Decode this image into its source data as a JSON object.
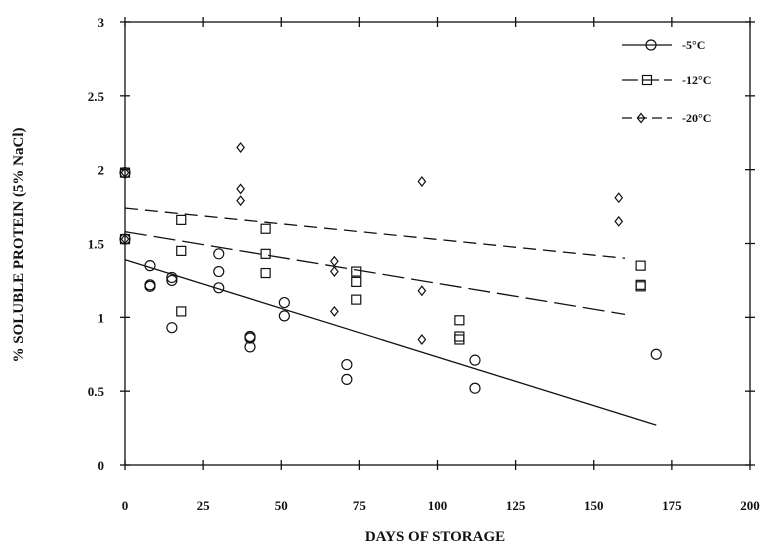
{
  "chart_data": {
    "type": "scatter",
    "xlabel": "DAYS OF STORAGE",
    "ylabel": "% SOLUBLE PROTEIN (5% NaCl)",
    "xlim": [
      0,
      200
    ],
    "ylim": [
      0,
      3
    ],
    "x_ticks": [
      0,
      25,
      50,
      75,
      100,
      125,
      150,
      175,
      200
    ],
    "y_ticks": [
      0,
      0.5,
      1,
      1.5,
      2,
      2.5,
      3
    ],
    "grid": false,
    "legend_position": "top-right",
    "series": [
      {
        "name": "-5°C",
        "marker": "circle",
        "line_style": "solid",
        "points": [
          [
            0,
            1.98
          ],
          [
            0,
            1.53
          ],
          [
            8,
            1.35
          ],
          [
            8,
            1.22
          ],
          [
            8,
            1.21
          ],
          [
            15,
            1.27
          ],
          [
            15,
            1.25
          ],
          [
            15,
            0.93
          ],
          [
            30,
            1.43
          ],
          [
            30,
            1.31
          ],
          [
            30,
            1.2
          ],
          [
            40,
            0.87
          ],
          [
            40,
            0.86
          ],
          [
            40,
            0.8
          ],
          [
            51,
            1.1
          ],
          [
            51,
            1.01
          ],
          [
            71,
            0.68
          ],
          [
            71,
            0.58
          ],
          [
            112,
            0.71
          ],
          [
            112,
            0.52
          ],
          [
            170,
            0.75
          ]
        ],
        "trend": {
          "x": [
            0,
            170
          ],
          "y": [
            1.39,
            0.27
          ]
        }
      },
      {
        "name": "-12°C",
        "marker": "square",
        "line_style": "long-dash",
        "points": [
          [
            0,
            1.98
          ],
          [
            0,
            1.53
          ],
          [
            18,
            1.66
          ],
          [
            18,
            1.45
          ],
          [
            18,
            1.04
          ],
          [
            45,
            1.6
          ],
          [
            45,
            1.43
          ],
          [
            45,
            1.3
          ],
          [
            74,
            1.31
          ],
          [
            74,
            1.24
          ],
          [
            74,
            1.12
          ],
          [
            107,
            0.98
          ],
          [
            107,
            0.87
          ],
          [
            107,
            0.85
          ],
          [
            165,
            1.35
          ],
          [
            165,
            1.22
          ],
          [
            165,
            1.21
          ]
        ],
        "trend": {
          "x": [
            0,
            160
          ],
          "y": [
            1.58,
            1.02
          ]
        }
      },
      {
        "name": "-20°C",
        "marker": "diamond",
        "line_style": "short-dash",
        "points": [
          [
            0,
            1.98
          ],
          [
            0,
            1.53
          ],
          [
            37,
            2.15
          ],
          [
            37,
            1.87
          ],
          [
            37,
            1.79
          ],
          [
            67,
            1.38
          ],
          [
            67,
            1.31
          ],
          [
            67,
            1.04
          ],
          [
            95,
            1.92
          ],
          [
            95,
            1.18
          ],
          [
            95,
            0.85
          ],
          [
            158,
            1.81
          ],
          [
            158,
            1.65
          ]
        ],
        "trend": {
          "x": [
            0,
            160
          ],
          "y": [
            1.74,
            1.4
          ]
        }
      }
    ]
  }
}
